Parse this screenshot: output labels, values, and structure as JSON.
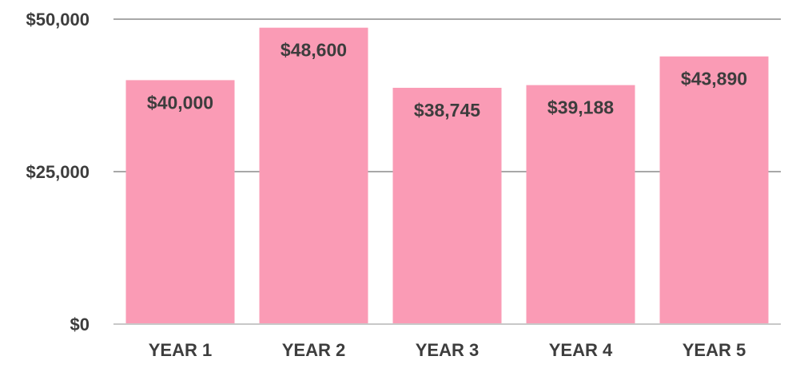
{
  "chart_data": {
    "type": "bar",
    "categories": [
      "YEAR 1",
      "YEAR 2",
      "YEAR 3",
      "YEAR 4",
      "YEAR 5"
    ],
    "values": [
      40000,
      48600,
      38745,
      39188,
      43890
    ],
    "value_labels": [
      "$40,000",
      "$48,600",
      "$38,745",
      "$39,188",
      "$43,890"
    ],
    "title": "",
    "xlabel": "",
    "ylabel": "",
    "ylim": [
      0,
      50000
    ],
    "yticks": [
      0,
      25000,
      50000
    ],
    "ytick_labels": [
      "$0",
      "$25,000",
      "$50,000"
    ],
    "grid": true,
    "legend": "none",
    "colors": {
      "bar": "#fa9bb5",
      "grid": "#8c8c8c",
      "axis": "#c8c8c8",
      "text": "#3d3d3d"
    }
  }
}
